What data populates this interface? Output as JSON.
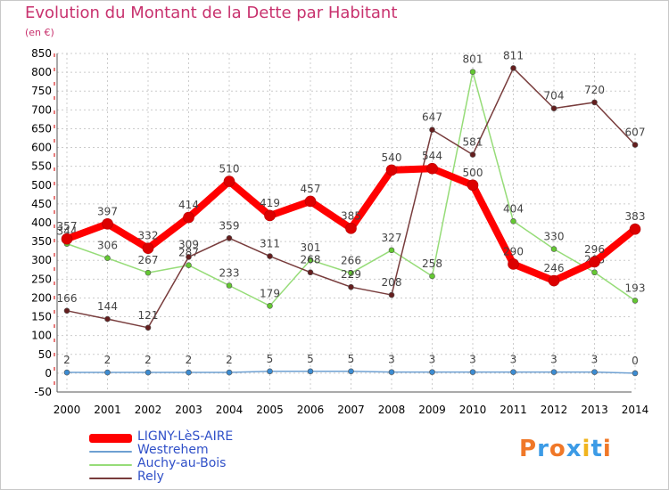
{
  "title": "Evolution du Montant de la Dette par Habitant",
  "subtitle": "(en €)",
  "logo": {
    "text": "Proxiti",
    "colors": [
      "#f07828",
      "#3c9be6",
      "#f07828",
      "#3c9be6",
      "#f0b41e",
      "#3c9be6",
      "#f07828"
    ]
  },
  "chart_data": {
    "type": "line",
    "x": [
      2000,
      2001,
      2002,
      2003,
      2004,
      2005,
      2006,
      2007,
      2008,
      2009,
      2010,
      2011,
      2012,
      2013,
      2014
    ],
    "ylim": [
      -50,
      850
    ],
    "yticks": [
      -50,
      0,
      50,
      100,
      150,
      200,
      250,
      300,
      350,
      400,
      450,
      500,
      550,
      600,
      650,
      700,
      750,
      800,
      850
    ],
    "grid": true,
    "legend_position": "bottom-left",
    "series": [
      {
        "name": "LIGNY-LèS-AIRE",
        "color": "#ff0000",
        "marker_color": "#dc0000",
        "width": 8,
        "values": [
          357,
          397,
          332,
          414,
          510,
          419,
          457,
          385,
          540,
          544,
          500,
          290,
          246,
          296,
          383
        ]
      },
      {
        "name": "Westrehem",
        "color": "#6ea0d2",
        "marker_color": "#3c8cd2",
        "width": 1.5,
        "values": [
          2,
          2,
          2,
          2,
          2,
          5,
          5,
          5,
          3,
          3,
          3,
          3,
          3,
          3,
          0
        ]
      },
      {
        "name": "Auchy-au-Bois",
        "color": "#96dc78",
        "marker_color": "#64c832",
        "width": 1.5,
        "values": [
          344,
          306,
          267,
          287,
          233,
          179,
          301,
          266,
          327,
          258,
          801,
          404,
          330,
          268,
          193
        ]
      },
      {
        "name": "Rely",
        "color": "#783c3c",
        "marker_color": "#641e1e",
        "width": 1.5,
        "values": [
          166,
          144,
          121,
          309,
          359,
          311,
          268,
          229,
          208,
          647,
          581,
          811,
          704,
          720,
          607
        ]
      }
    ]
  }
}
